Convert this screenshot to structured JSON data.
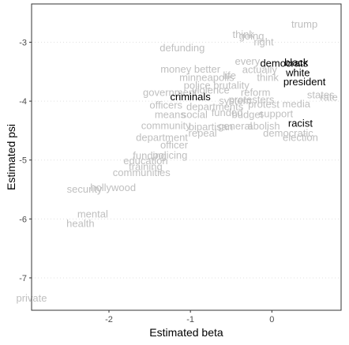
{
  "chart_data": {
    "type": "scatter",
    "xlabel": "Estimated beta",
    "ylabel": "Estimated psi",
    "xlim": [
      -2.95,
      0.85
    ],
    "ylim": [
      -7.55,
      -2.35
    ],
    "x_ticks": [
      -2,
      -1,
      0
    ],
    "y_ticks": [
      -3,
      -4,
      -5,
      -6,
      -7
    ],
    "grid": "horizontal dotted",
    "colors": {
      "muted": "#bfbfbf",
      "highlight": "#000000"
    },
    "points": [
      {
        "label": "trump",
        "x": 0.4,
        "y": -2.7,
        "highlight": false
      },
      {
        "label": "think",
        "x": -0.35,
        "y": -2.87,
        "highlight": false
      },
      {
        "label": "going",
        "x": -0.25,
        "y": -2.9,
        "highlight": false
      },
      {
        "label": "right",
        "x": -0.1,
        "y": -3.0,
        "highlight": false
      },
      {
        "label": "defunding",
        "x": -1.1,
        "y": -3.1,
        "highlight": false
      },
      {
        "label": "every",
        "x": -0.3,
        "y": -3.33,
        "highlight": false
      },
      {
        "label": "actually",
        "x": -0.15,
        "y": -3.47,
        "highlight": false
      },
      {
        "label": "think",
        "x": -0.05,
        "y": -3.6,
        "highlight": false
      },
      {
        "label": "black",
        "x": 0.3,
        "y": -3.35,
        "highlight": true
      },
      {
        "label": "democrats",
        "x": 0.15,
        "y": -3.36,
        "highlight": true
      },
      {
        "label": "white",
        "x": 0.32,
        "y": -3.52,
        "highlight": true
      },
      {
        "label": "president",
        "x": 0.4,
        "y": -3.68,
        "highlight": true
      },
      {
        "label": "money better",
        "x": -1.0,
        "y": -3.46,
        "highlight": false
      },
      {
        "label": "minneapolis",
        "x": -0.8,
        "y": -3.6,
        "highlight": false
      },
      {
        "label": "life",
        "x": -0.52,
        "y": -3.57,
        "highlight": false
      },
      {
        "label": "police brutality",
        "x": -0.68,
        "y": -3.74,
        "highlight": false
      },
      {
        "label": "government",
        "x": -1.25,
        "y": -3.86,
        "highlight": false
      },
      {
        "label": "violence",
        "x": -0.75,
        "y": -3.82,
        "highlight": false
      },
      {
        "label": "criminals",
        "x": -1.0,
        "y": -3.93,
        "highlight": true
      },
      {
        "label": "reform",
        "x": -0.2,
        "y": -3.86,
        "highlight": false
      },
      {
        "label": "states",
        "x": 0.6,
        "y": -3.9,
        "highlight": false
      },
      {
        "label": "rate",
        "x": 0.7,
        "y": -3.94,
        "highlight": false
      },
      {
        "label": "protesters",
        "x": -0.25,
        "y": -3.98,
        "highlight": false
      },
      {
        "label": "system",
        "x": -0.45,
        "y": -4.0,
        "highlight": false
      },
      {
        "label": "officers",
        "x": -1.3,
        "y": -4.07,
        "highlight": false
      },
      {
        "label": "departments",
        "x": -0.7,
        "y": -4.1,
        "highlight": false
      },
      {
        "label": "protest",
        "x": -0.1,
        "y": -4.06,
        "highlight": false
      },
      {
        "label": "media",
        "x": 0.3,
        "y": -4.05,
        "highlight": false
      },
      {
        "label": "means",
        "x": -1.25,
        "y": -4.23,
        "highlight": false
      },
      {
        "label": "social",
        "x": -0.95,
        "y": -4.23,
        "highlight": false
      },
      {
        "label": "funded",
        "x": -0.55,
        "y": -4.2,
        "highlight": false
      },
      {
        "label": "budget",
        "x": -0.3,
        "y": -4.23,
        "highlight": false
      },
      {
        "label": "support",
        "x": 0.05,
        "y": -4.22,
        "highlight": false
      },
      {
        "label": "racist",
        "x": 0.35,
        "y": -4.38,
        "highlight": true
      },
      {
        "label": "community",
        "x": -1.3,
        "y": -4.42,
        "highlight": false
      },
      {
        "label": "bipartisan",
        "x": -0.75,
        "y": -4.44,
        "highlight": false
      },
      {
        "label": "general",
        "x": -0.45,
        "y": -4.43,
        "highlight": false
      },
      {
        "label": "abolish",
        "x": -0.1,
        "y": -4.43,
        "highlight": false
      },
      {
        "label": "department",
        "x": -1.35,
        "y": -4.62,
        "highlight": false
      },
      {
        "label": "repeal",
        "x": -0.85,
        "y": -4.55,
        "highlight": false
      },
      {
        "label": "democratic",
        "x": 0.2,
        "y": -4.55,
        "highlight": false
      },
      {
        "label": "election",
        "x": 0.35,
        "y": -4.62,
        "highlight": false
      },
      {
        "label": "officer",
        "x": -1.2,
        "y": -4.75,
        "highlight": false
      },
      {
        "label": "policing",
        "x": -1.25,
        "y": -4.92,
        "highlight": false
      },
      {
        "label": "funding",
        "x": -1.5,
        "y": -4.93,
        "highlight": false
      },
      {
        "label": "education",
        "x": -1.55,
        "y": -5.02,
        "highlight": false
      },
      {
        "label": "training",
        "x": -1.55,
        "y": -5.12,
        "highlight": false
      },
      {
        "label": "communities",
        "x": -1.6,
        "y": -5.22,
        "highlight": false
      },
      {
        "label": "hollywood",
        "x": -1.95,
        "y": -5.47,
        "highlight": false
      },
      {
        "label": "security",
        "x": -2.3,
        "y": -5.5,
        "highlight": false
      },
      {
        "label": "mental",
        "x": -2.2,
        "y": -5.92,
        "highlight": false
      },
      {
        "label": "health",
        "x": -2.35,
        "y": -6.08,
        "highlight": false
      },
      {
        "label": "private",
        "x": -2.95,
        "y": -7.35,
        "highlight": false
      }
    ]
  }
}
